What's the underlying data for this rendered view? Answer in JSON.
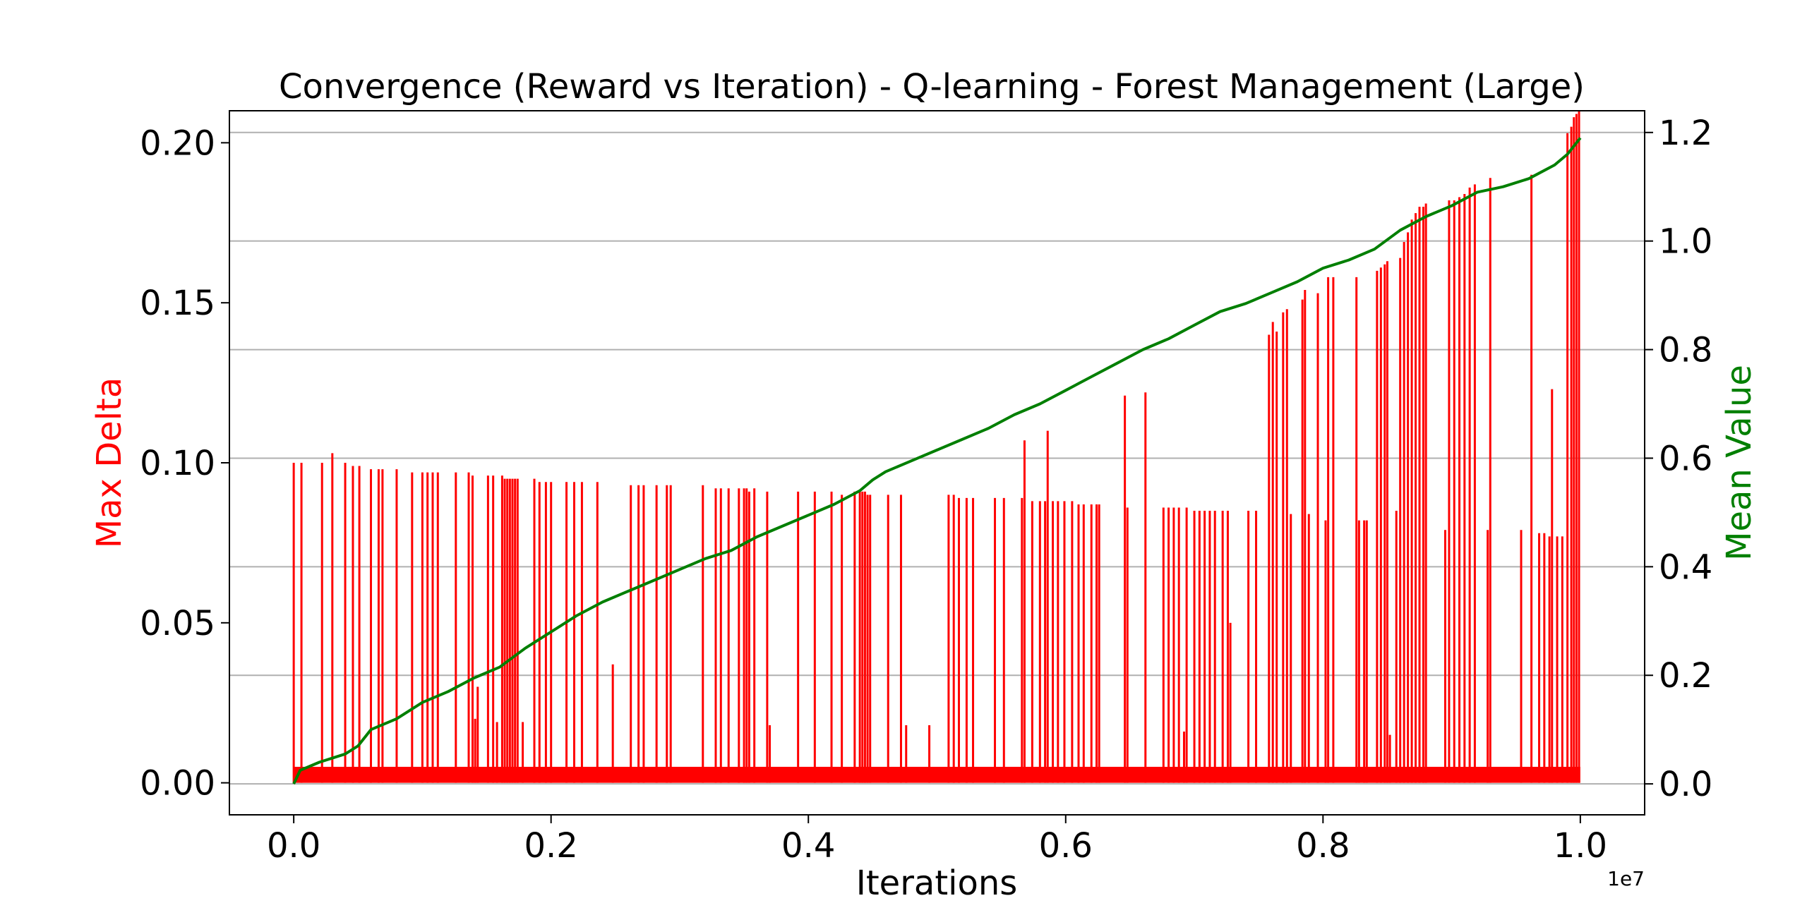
{
  "chart_data": {
    "type": "line",
    "title": "Convergence (Reward vs Iteration) - Q-learning - Forest Management (Large)",
    "xlabel": "Iterations",
    "ylabel_left": "Max Delta",
    "ylabel_right": "Mean Value",
    "x_offset_label": "1e7",
    "xlim": [
      -0.05,
      1.05
    ],
    "ylim_left": [
      -0.01,
      0.21
    ],
    "ylim_right": [
      -0.057,
      1.24
    ],
    "x_ticks": [
      0.0,
      0.2,
      0.4,
      0.6,
      0.8,
      1.0
    ],
    "x_tick_labels": [
      "0.0",
      "0.2",
      "0.4",
      "0.6",
      "0.8",
      "1.0"
    ],
    "y_left_ticks": [
      0.0,
      0.05,
      0.1,
      0.15,
      0.2
    ],
    "y_left_tick_labels": [
      "0.00",
      "0.05",
      "0.10",
      "0.15",
      "0.20"
    ],
    "y_right_ticks": [
      0.0,
      0.2,
      0.4,
      0.6,
      0.8,
      1.0,
      1.2
    ],
    "y_right_tick_labels": [
      "0.0",
      "0.2",
      "0.4",
      "0.6",
      "0.8",
      "1.0",
      "1.2"
    ],
    "grid": "horizontal lines at right-axis ticks",
    "colors": {
      "max_delta": "#ff0000",
      "mean_value": "#007f00",
      "grid": "#b0b0b0"
    },
    "series": [
      {
        "name": "Max Delta",
        "axis": "left",
        "baseline_band": [
          0.0,
          0.005
        ],
        "spikes": [
          [
            0.0,
            0.1
          ],
          [
            0.006,
            0.1
          ],
          [
            0.022,
            0.1
          ],
          [
            0.03,
            0.103
          ],
          [
            0.04,
            0.1
          ],
          [
            0.046,
            0.099
          ],
          [
            0.051,
            0.099
          ],
          [
            0.06,
            0.098
          ],
          [
            0.066,
            0.098
          ],
          [
            0.069,
            0.098
          ],
          [
            0.08,
            0.098
          ],
          [
            0.092,
            0.097
          ],
          [
            0.1,
            0.097
          ],
          [
            0.104,
            0.097
          ],
          [
            0.108,
            0.097
          ],
          [
            0.112,
            0.097
          ],
          [
            0.126,
            0.097
          ],
          [
            0.136,
            0.097
          ],
          [
            0.139,
            0.096
          ],
          [
            0.141,
            0.02
          ],
          [
            0.143,
            0.03
          ],
          [
            0.151,
            0.096
          ],
          [
            0.155,
            0.096
          ],
          [
            0.158,
            0.019
          ],
          [
            0.162,
            0.096
          ],
          [
            0.164,
            0.095
          ],
          [
            0.166,
            0.095
          ],
          [
            0.168,
            0.095
          ],
          [
            0.17,
            0.095
          ],
          [
            0.172,
            0.095
          ],
          [
            0.174,
            0.095
          ],
          [
            0.178,
            0.019
          ],
          [
            0.187,
            0.095
          ],
          [
            0.191,
            0.094
          ],
          [
            0.196,
            0.094
          ],
          [
            0.2,
            0.094
          ],
          [
            0.212,
            0.094
          ],
          [
            0.218,
            0.094
          ],
          [
            0.224,
            0.094
          ],
          [
            0.236,
            0.094
          ],
          [
            0.248,
            0.037
          ],
          [
            0.262,
            0.093
          ],
          [
            0.268,
            0.093
          ],
          [
            0.272,
            0.093
          ],
          [
            0.282,
            0.093
          ],
          [
            0.29,
            0.093
          ],
          [
            0.293,
            0.093
          ],
          [
            0.318,
            0.093
          ],
          [
            0.328,
            0.092
          ],
          [
            0.332,
            0.092
          ],
          [
            0.338,
            0.092
          ],
          [
            0.346,
            0.092
          ],
          [
            0.35,
            0.092
          ],
          [
            0.352,
            0.092
          ],
          [
            0.354,
            0.091
          ],
          [
            0.358,
            0.092
          ],
          [
            0.368,
            0.091
          ],
          [
            0.37,
            0.018
          ],
          [
            0.392,
            0.091
          ],
          [
            0.405,
            0.091
          ],
          [
            0.418,
            0.091
          ],
          [
            0.426,
            0.09
          ],
          [
            0.436,
            0.091
          ],
          [
            0.44,
            0.091
          ],
          [
            0.442,
            0.091
          ],
          [
            0.444,
            0.091
          ],
          [
            0.446,
            0.09
          ],
          [
            0.448,
            0.09
          ],
          [
            0.462,
            0.09
          ],
          [
            0.472,
            0.09
          ],
          [
            0.476,
            0.018
          ],
          [
            0.494,
            0.018
          ],
          [
            0.509,
            0.09
          ],
          [
            0.513,
            0.09
          ],
          [
            0.517,
            0.089
          ],
          [
            0.523,
            0.089
          ],
          [
            0.528,
            0.089
          ],
          [
            0.545,
            0.089
          ],
          [
            0.552,
            0.089
          ],
          [
            0.566,
            0.089
          ],
          [
            0.568,
            0.107
          ],
          [
            0.574,
            0.088
          ],
          [
            0.58,
            0.088
          ],
          [
            0.584,
            0.088
          ],
          [
            0.586,
            0.11
          ],
          [
            0.59,
            0.088
          ],
          [
            0.594,
            0.088
          ],
          [
            0.599,
            0.088
          ],
          [
            0.605,
            0.088
          ],
          [
            0.61,
            0.087
          ],
          [
            0.614,
            0.087
          ],
          [
            0.62,
            0.087
          ],
          [
            0.624,
            0.087
          ],
          [
            0.626,
            0.087
          ],
          [
            0.646,
            0.121
          ],
          [
            0.648,
            0.086
          ],
          [
            0.662,
            0.122
          ],
          [
            0.676,
            0.086
          ],
          [
            0.68,
            0.086
          ],
          [
            0.684,
            0.086
          ],
          [
            0.688,
            0.086
          ],
          [
            0.692,
            0.016
          ],
          [
            0.694,
            0.086
          ],
          [
            0.7,
            0.085
          ],
          [
            0.704,
            0.085
          ],
          [
            0.708,
            0.085
          ],
          [
            0.712,
            0.085
          ],
          [
            0.716,
            0.085
          ],
          [
            0.722,
            0.085
          ],
          [
            0.726,
            0.085
          ],
          [
            0.728,
            0.05
          ],
          [
            0.742,
            0.085
          ],
          [
            0.748,
            0.085
          ],
          [
            0.758,
            0.14
          ],
          [
            0.761,
            0.144
          ],
          [
            0.764,
            0.141
          ],
          [
            0.769,
            0.147
          ],
          [
            0.772,
            0.148
          ],
          [
            0.775,
            0.084
          ],
          [
            0.784,
            0.151
          ],
          [
            0.786,
            0.154
          ],
          [
            0.789,
            0.084
          ],
          [
            0.796,
            0.153
          ],
          [
            0.802,
            0.082
          ],
          [
            0.804,
            0.158
          ],
          [
            0.808,
            0.158
          ],
          [
            0.826,
            0.158
          ],
          [
            0.828,
            0.082
          ],
          [
            0.832,
            0.082
          ],
          [
            0.834,
            0.082
          ],
          [
            0.842,
            0.16
          ],
          [
            0.845,
            0.161
          ],
          [
            0.848,
            0.162
          ],
          [
            0.85,
            0.163
          ],
          [
            0.852,
            0.015
          ],
          [
            0.857,
            0.085
          ],
          [
            0.86,
            0.164
          ],
          [
            0.863,
            0.169
          ],
          [
            0.866,
            0.172
          ],
          [
            0.869,
            0.176
          ],
          [
            0.872,
            0.178
          ],
          [
            0.875,
            0.18
          ],
          [
            0.878,
            0.18
          ],
          [
            0.88,
            0.181
          ],
          [
            0.895,
            0.079
          ],
          [
            0.898,
            0.182
          ],
          [
            0.902,
            0.182
          ],
          [
            0.906,
            0.183
          ],
          [
            0.91,
            0.184
          ],
          [
            0.914,
            0.186
          ],
          [
            0.918,
            0.187
          ],
          [
            0.928,
            0.079
          ],
          [
            0.93,
            0.189
          ],
          [
            0.954,
            0.079
          ],
          [
            0.962,
            0.19
          ],
          [
            0.968,
            0.078
          ],
          [
            0.972,
            0.078
          ],
          [
            0.976,
            0.077
          ],
          [
            0.978,
            0.123
          ],
          [
            0.982,
            0.077
          ],
          [
            0.986,
            0.077
          ],
          [
            0.99,
            0.203
          ],
          [
            0.993,
            0.205
          ],
          [
            0.995,
            0.208
          ],
          [
            0.997,
            0.209
          ],
          [
            0.999,
            0.21
          ]
        ]
      },
      {
        "name": "Mean Value",
        "axis": "right",
        "points": [
          [
            0.0,
            0.0
          ],
          [
            0.005,
            0.025
          ],
          [
            0.02,
            0.04
          ],
          [
            0.04,
            0.055
          ],
          [
            0.05,
            0.07
          ],
          [
            0.06,
            0.1
          ],
          [
            0.08,
            0.12
          ],
          [
            0.1,
            0.15
          ],
          [
            0.12,
            0.17
          ],
          [
            0.14,
            0.195
          ],
          [
            0.16,
            0.215
          ],
          [
            0.18,
            0.25
          ],
          [
            0.2,
            0.28
          ],
          [
            0.22,
            0.31
          ],
          [
            0.24,
            0.335
          ],
          [
            0.26,
            0.355
          ],
          [
            0.28,
            0.375
          ],
          [
            0.3,
            0.395
          ],
          [
            0.32,
            0.415
          ],
          [
            0.34,
            0.43
          ],
          [
            0.36,
            0.455
          ],
          [
            0.38,
            0.475
          ],
          [
            0.4,
            0.495
          ],
          [
            0.42,
            0.515
          ],
          [
            0.44,
            0.54
          ],
          [
            0.45,
            0.56
          ],
          [
            0.46,
            0.575
          ],
          [
            0.48,
            0.595
          ],
          [
            0.5,
            0.615
          ],
          [
            0.52,
            0.635
          ],
          [
            0.54,
            0.655
          ],
          [
            0.56,
            0.68
          ],
          [
            0.58,
            0.7
          ],
          [
            0.6,
            0.725
          ],
          [
            0.62,
            0.75
          ],
          [
            0.64,
            0.775
          ],
          [
            0.66,
            0.8
          ],
          [
            0.68,
            0.82
          ],
          [
            0.7,
            0.845
          ],
          [
            0.72,
            0.87
          ],
          [
            0.74,
            0.885
          ],
          [
            0.76,
            0.905
          ],
          [
            0.78,
            0.925
          ],
          [
            0.8,
            0.95
          ],
          [
            0.82,
            0.965
          ],
          [
            0.84,
            0.985
          ],
          [
            0.86,
            1.02
          ],
          [
            0.88,
            1.045
          ],
          [
            0.9,
            1.065
          ],
          [
            0.92,
            1.09
          ],
          [
            0.94,
            1.1
          ],
          [
            0.96,
            1.115
          ],
          [
            0.98,
            1.14
          ],
          [
            0.99,
            1.16
          ],
          [
            1.0,
            1.19
          ]
        ]
      }
    ]
  }
}
